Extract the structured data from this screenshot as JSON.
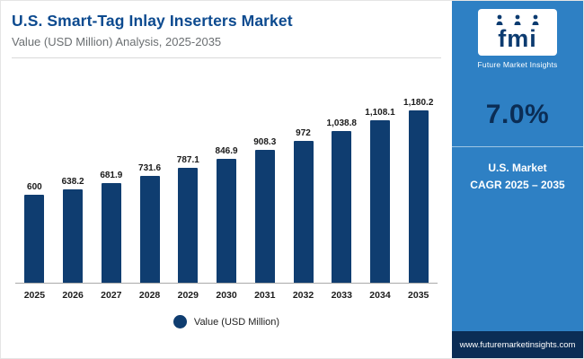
{
  "header": {
    "title": "U.S. Smart-Tag Inlay Inserters Market",
    "subtitle": "Value (USD Million) Analysis, 2025-2035"
  },
  "chart_data": {
    "type": "bar",
    "title": "U.S. Smart-Tag Inlay Inserters Market",
    "xlabel": "",
    "ylabel": "Value (USD Million)",
    "categories": [
      "2025",
      "2026",
      "2027",
      "2028",
      "2029",
      "2030",
      "2031",
      "2032",
      "2033",
      "2034",
      "2035"
    ],
    "values": [
      600,
      638.2,
      681.9,
      731.6,
      787.1,
      846.9,
      908.3,
      972,
      1038.8,
      1108.1,
      1180.2
    ],
    "value_labels": [
      "600",
      "638.2",
      "681.9",
      "731.6",
      "787.1",
      "846.9",
      "908.3",
      "972",
      "1,038.8",
      "1,108.1",
      "1,180.2"
    ],
    "ylim": [
      0,
      1300
    ],
    "grid": false,
    "legend_position": "bottom",
    "legend_label": "Value (USD Million)",
    "bar_color": "#0f3d70"
  },
  "sidebar": {
    "logo_text": "fmi",
    "logo_caption": "Future Market Insights",
    "cagr_value": "7.0%",
    "cagr_label_line1": "U.S. Market",
    "cagr_label_line2": "CAGR 2025 – 2035",
    "footer_url": "www.futuremarketinsights.com"
  },
  "colors": {
    "bar": "#0f3d70",
    "panel": "#2e80c4",
    "panel_footer": "#0b2d55",
    "title": "#0c4a8f",
    "subtitle": "#6b6f72"
  }
}
